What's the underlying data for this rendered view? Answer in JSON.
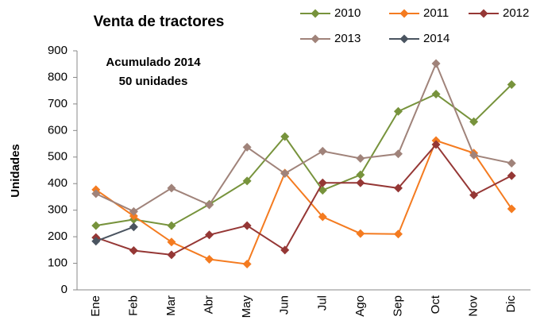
{
  "chart_data": {
    "type": "line",
    "title": "Venta de tractores",
    "annotations": [
      "Acumulado 2014",
      "50 unidades"
    ],
    "y_label": "Unidades",
    "categories": [
      "Ene",
      "Feb",
      "Mar",
      "Abr",
      "May",
      "Jun",
      "Jul",
      "Ago",
      "Sep",
      "Oct",
      "Nov",
      "Dic"
    ],
    "series": [
      {
        "name": "2010",
        "color": "#77933c",
        "values": [
          242,
          265,
          242,
          322,
          410,
          577,
          375,
          433,
          672,
          737,
          633,
          773
        ]
      },
      {
        "name": "2011",
        "color": "#f47b20",
        "values": [
          377,
          278,
          180,
          115,
          97,
          440,
          275,
          212,
          210,
          562,
          515,
          305
        ]
      },
      {
        "name": "2012",
        "color": "#953735",
        "values": [
          197,
          148,
          132,
          207,
          242,
          150,
          403,
          403,
          383,
          547,
          357,
          430
        ]
      },
      {
        "name": "2013",
        "color": "#a0837a",
        "values": [
          362,
          295,
          383,
          320,
          537,
          438,
          522,
          495,
          512,
          852,
          507,
          477
        ]
      },
      {
        "name": "2014",
        "color": "#4a5460",
        "values": [
          183,
          237,
          null,
          null,
          null,
          null,
          null,
          null,
          null,
          null,
          null,
          null
        ]
      }
    ],
    "ylim": [
      0,
      900
    ],
    "yticks": [
      0,
      100,
      200,
      300,
      400,
      500,
      600,
      700,
      800,
      900
    ],
    "grid": false
  }
}
